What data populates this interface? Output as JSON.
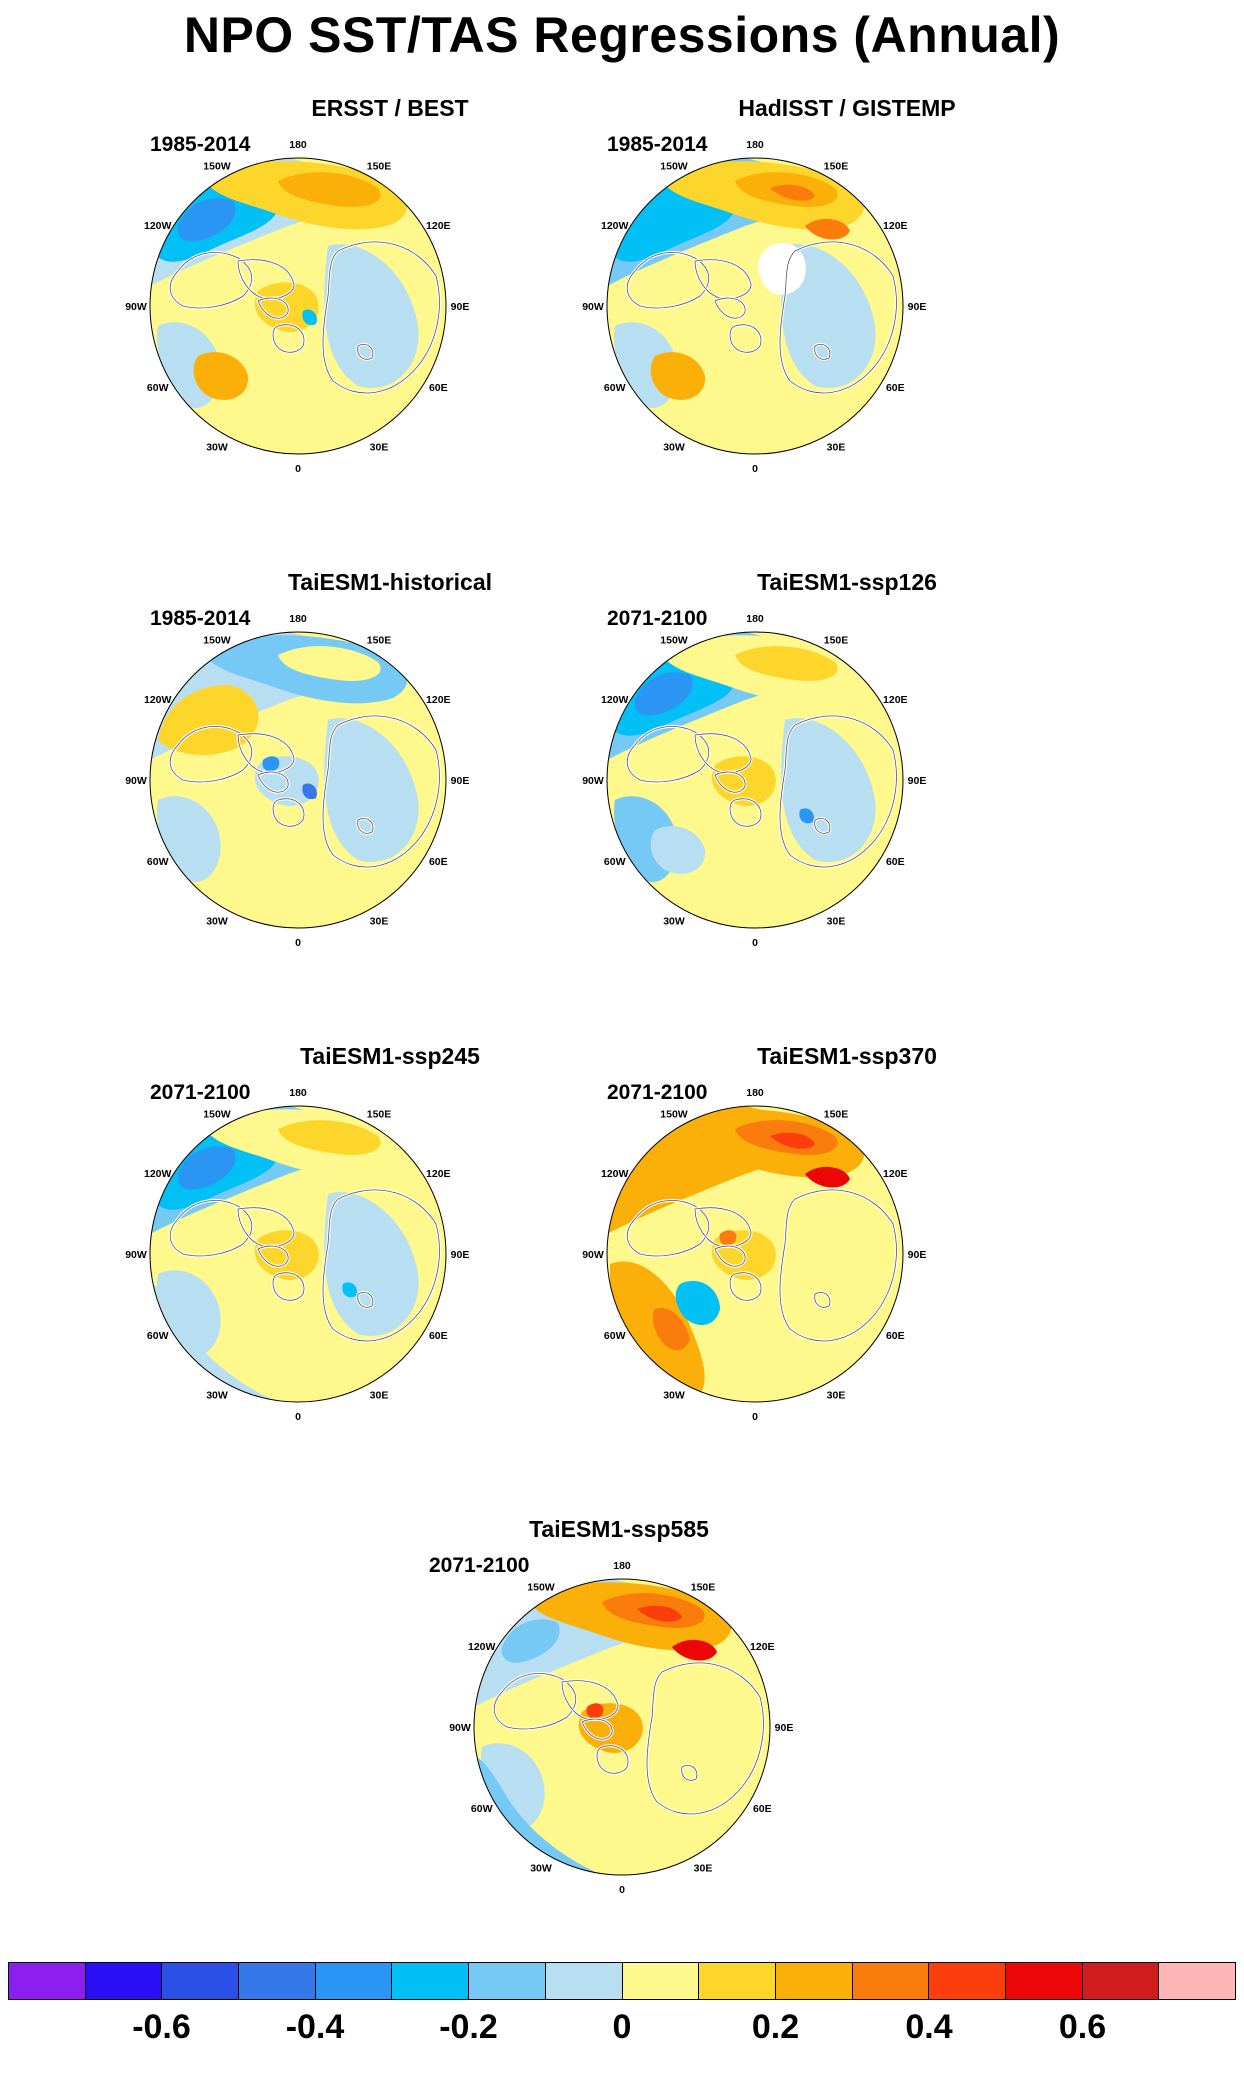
{
  "title": "NPO SST/TAS Regressions (Annual)",
  "longitude_labels": [
    "180",
    "150E",
    "120E",
    "90E",
    "60E",
    "30E",
    "0",
    "30W",
    "60W",
    "90W",
    "120W",
    "150W"
  ],
  "panels": [
    {
      "title": "ERSST / BEST",
      "period": "1985-2014",
      "pattern": "ersst"
    },
    {
      "title": "HadISST / GISTEMP",
      "period": "1985-2014",
      "pattern": "hadisst"
    },
    {
      "title": "TaiESM1-historical",
      "period": "1985-2014",
      "pattern": "hist"
    },
    {
      "title": "TaiESM1-ssp126",
      "period": "2071-2100",
      "pattern": "ssp126"
    },
    {
      "title": "TaiESM1-ssp245",
      "period": "2071-2100",
      "pattern": "ssp245"
    },
    {
      "title": "TaiESM1-ssp370",
      "period": "2071-2100",
      "pattern": "ssp370"
    },
    {
      "title": "TaiESM1-ssp585",
      "period": "2071-2100",
      "pattern": "ssp585"
    }
  ],
  "colorbar": {
    "colors": [
      "#8a1ff0",
      "#2a0ff5",
      "#2a50e6",
      "#3578ea",
      "#2a95f2",
      "#00c0f5",
      "#76c8f5",
      "#b8def2",
      "#fff88c",
      "#fdd62b",
      "#fab008",
      "#f97c0c",
      "#fc3d0c",
      "#eb0707",
      "#d01c1c",
      "#ffb6b6"
    ],
    "tick_labels": [
      "-0.6",
      "-0.4",
      "-0.2",
      "0",
      "0.2",
      "0.4",
      "0.6"
    ],
    "tick_box_boundaries": [
      2,
      4,
      6,
      8,
      10,
      12,
      14
    ]
  }
}
